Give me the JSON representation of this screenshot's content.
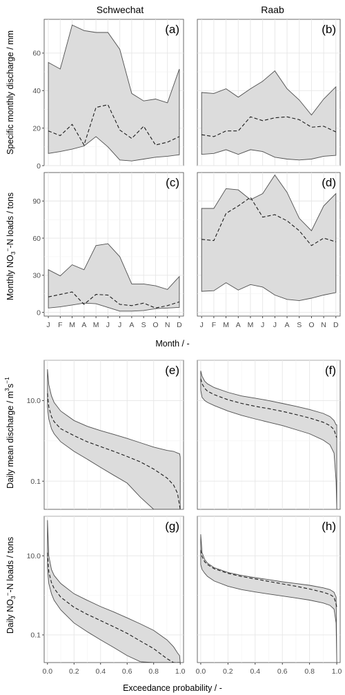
{
  "figure": {
    "column_titles": [
      "Schwechat",
      "Raab"
    ],
    "monthly_xlabel": "Month / -",
    "exceedance_xlabel": "Exceedance probability / -",
    "ylabel_discharge": "Specific monthly discharge / mm",
    "ylabel_loads_pre": "Monthly NO",
    "ylabel_loads_post": "-N loads / tons",
    "ylabel_daily_q_pre": "Daily mean discharge / m",
    "ylabel_daily_q_post": "s",
    "ylabel_daily_loads_pre": "Daily NO",
    "ylabel_daily_loads_post": "-N loads / tons",
    "sub_3": "3",
    "sup_minus": "−",
    "sup_3": "3",
    "sup_minus1": "−1",
    "month_ticks": [
      "J",
      "F",
      "M",
      "A",
      "M",
      "J",
      "J",
      "A",
      "S",
      "O",
      "N",
      "D"
    ],
    "prob_ticks": [
      "0.0",
      "0.2",
      "0.4",
      "0.6",
      "0.8",
      "1.0"
    ]
  },
  "colors": {
    "band_fill": "#dcdcdc",
    "band_edge": "#4d4d4d",
    "median": "#1a1a1a",
    "grid": "#e6e6e6",
    "frame": "#5a5a5a"
  },
  "chart_data": [
    {
      "panel": "(a)",
      "river": "Schwechat",
      "type": "area",
      "x": [
        "J",
        "F",
        "M",
        "A",
        "M",
        "J",
        "J",
        "A",
        "S",
        "O",
        "N",
        "D"
      ],
      "ylim": [
        0,
        78
      ],
      "yticks": [
        0,
        20,
        40,
        60
      ],
      "series": [
        {
          "role": "upper",
          "values": [
            55,
            51.5,
            75,
            72,
            71,
            71,
            62,
            38.5,
            34.5,
            35.5,
            33.5,
            51.5
          ]
        },
        {
          "role": "median",
          "values": [
            18.5,
            16,
            22,
            11,
            31,
            32.5,
            19,
            14.5,
            21,
            11,
            12.5,
            15.5
          ]
        },
        {
          "role": "lower",
          "values": [
            6.5,
            7.5,
            8.8,
            10.5,
            15.5,
            10,
            3,
            2.5,
            3.5,
            4.5,
            5,
            5.8
          ]
        }
      ]
    },
    {
      "panel": "(b)",
      "river": "Raab",
      "type": "area",
      "x": [
        "J",
        "F",
        "M",
        "A",
        "M",
        "J",
        "J",
        "A",
        "S",
        "O",
        "N",
        "D"
      ],
      "ylim": [
        0,
        78
      ],
      "yticks": [
        0,
        20,
        40,
        60
      ],
      "series": [
        {
          "role": "upper",
          "values": [
            39,
            38.5,
            41,
            36.5,
            41,
            45,
            50.5,
            41,
            35,
            27,
            35.5,
            42
          ]
        },
        {
          "role": "median",
          "values": [
            16.5,
            15.5,
            18.5,
            18.5,
            26,
            24,
            25.5,
            26,
            24.5,
            20.5,
            21,
            18
          ]
        },
        {
          "role": "lower",
          "values": [
            6,
            6.5,
            8.5,
            6,
            8.5,
            7.5,
            4.5,
            3.5,
            3,
            3.5,
            5,
            5.5
          ]
        }
      ]
    },
    {
      "panel": "(c)",
      "river": "Schwechat",
      "type": "area",
      "x": [
        "J",
        "F",
        "M",
        "A",
        "M",
        "J",
        "J",
        "A",
        "S",
        "O",
        "N",
        "D"
      ],
      "ylim": [
        -3,
        113
      ],
      "yticks": [
        0,
        30,
        60,
        90
      ],
      "series": [
        {
          "role": "upper",
          "values": [
            34.5,
            29.5,
            38.5,
            34.5,
            54,
            55.5,
            45,
            23,
            23,
            21.5,
            18.5,
            29
          ]
        },
        {
          "role": "median",
          "values": [
            12.5,
            14.5,
            16.5,
            6.5,
            14.5,
            14,
            6.5,
            5.5,
            7.5,
            3.5,
            5.5,
            8.5
          ]
        },
        {
          "role": "lower",
          "values": [
            3.5,
            4.5,
            6,
            7.5,
            7,
            4,
            1,
            1,
            1.5,
            3,
            3.5,
            4
          ]
        }
      ]
    },
    {
      "panel": "(d)",
      "river": "Raab",
      "type": "area",
      "x": [
        "J",
        "F",
        "M",
        "A",
        "M",
        "J",
        "J",
        "A",
        "S",
        "O",
        "N",
        "D"
      ],
      "ylim": [
        -3,
        113
      ],
      "yticks": [
        0,
        30,
        60,
        90
      ],
      "series": [
        {
          "role": "upper",
          "values": [
            84,
            84,
            100,
            99,
            91,
            96,
            111,
            97,
            76,
            66,
            86,
            96
          ]
        },
        {
          "role": "median",
          "values": [
            59,
            58,
            80,
            86,
            93,
            77,
            79,
            74,
            66,
            54,
            60,
            57
          ]
        },
        {
          "role": "lower",
          "values": [
            17,
            17.5,
            24,
            18,
            22.5,
            20.5,
            14,
            10.5,
            9.5,
            11.5,
            14,
            16
          ]
        }
      ]
    },
    {
      "panel": "(e)",
      "river": "Schwechat",
      "type": "area",
      "yscale": "log",
      "xlim": [
        -0.025,
        1.025
      ],
      "ylim": [
        0.02,
        100
      ],
      "xticks": [
        0,
        0.2,
        0.4,
        0.6,
        0.8,
        1.0
      ],
      "yticks": [
        0.1,
        10
      ],
      "x": [
        0,
        0.01,
        0.03,
        0.05,
        0.1,
        0.2,
        0.3,
        0.4,
        0.5,
        0.6,
        0.7,
        0.8,
        0.9,
        0.95,
        0.98,
        0.995,
        1.0
      ],
      "series": [
        {
          "role": "upper",
          "values": [
            60,
            25,
            13,
            9,
            5.5,
            3.2,
            2.3,
            1.8,
            1.45,
            1.15,
            0.9,
            0.7,
            0.58,
            0.55,
            0.5,
            0.48,
            0.4
          ]
        },
        {
          "role": "median",
          "values": [
            15,
            7,
            4,
            3,
            2,
            1.35,
            0.95,
            0.72,
            0.55,
            0.41,
            0.3,
            0.2,
            0.12,
            0.08,
            0.05,
            0.025,
            0.02
          ]
        },
        {
          "role": "lower",
          "values": [
            7,
            3.5,
            2,
            1.5,
            0.95,
            0.55,
            0.35,
            0.22,
            0.14,
            0.09,
            0.04,
            0.02,
            0.02,
            0.02,
            0.02,
            0.02,
            0.02
          ]
        }
      ]
    },
    {
      "panel": "(f)",
      "river": "Raab",
      "type": "area",
      "yscale": "log",
      "xlim": [
        -0.025,
        1.025
      ],
      "ylim": [
        0.02,
        100
      ],
      "xticks": [
        0,
        0.2,
        0.4,
        0.6,
        0.8,
        1.0
      ],
      "yticks": [
        0.1,
        10
      ],
      "x": [
        0,
        0.01,
        0.03,
        0.05,
        0.1,
        0.2,
        0.3,
        0.4,
        0.5,
        0.6,
        0.7,
        0.8,
        0.9,
        0.95,
        0.98,
        0.995,
        1.0
      ],
      "series": [
        {
          "role": "upper",
          "values": [
            55,
            40,
            30,
            26,
            21,
            16,
            13,
            11.5,
            10,
            8.5,
            7.2,
            6,
            4.8,
            4,
            3.2,
            2.5,
            2.5
          ]
        },
        {
          "role": "median",
          "values": [
            35,
            26,
            20,
            17,
            14,
            10.5,
            8.5,
            7.2,
            6.3,
            5.4,
            4.5,
            3.7,
            2.9,
            2.4,
            1.9,
            1.3,
            1.2
          ]
        },
        {
          "role": "lower",
          "values": [
            18,
            12,
            10,
            9,
            7.5,
            5.5,
            4.3,
            3.5,
            2.9,
            2.4,
            1.9,
            1.5,
            1.05,
            0.8,
            0.5,
            0.1,
            0.02
          ]
        }
      ]
    },
    {
      "panel": "(g)",
      "river": "Schwechat",
      "type": "area",
      "yscale": "log",
      "xlim": [
        -0.025,
        1.025
      ],
      "ylim": [
        0.02,
        100
      ],
      "xticks": [
        0,
        0.2,
        0.4,
        0.6,
        0.8,
        1.0
      ],
      "yticks": [
        0.1,
        10
      ],
      "x": [
        0,
        0.01,
        0.03,
        0.05,
        0.1,
        0.2,
        0.3,
        0.4,
        0.5,
        0.6,
        0.7,
        0.8,
        0.9,
        0.95,
        0.98,
        0.995,
        1.0
      ],
      "series": [
        {
          "role": "upper",
          "values": [
            80,
            10,
            4.5,
            3.2,
            2,
            1.1,
            0.75,
            0.52,
            0.38,
            0.27,
            0.19,
            0.13,
            0.075,
            0.05,
            0.035,
            0.03,
            0.02
          ]
        },
        {
          "role": "median",
          "values": [
            12,
            4,
            2.1,
            1.5,
            0.9,
            0.5,
            0.33,
            0.23,
            0.16,
            0.11,
            0.07,
            0.045,
            0.025,
            0.02,
            0.02,
            0.02,
            0.02
          ]
        },
        {
          "role": "lower",
          "values": [
            5,
            2,
            1.1,
            0.75,
            0.43,
            0.2,
            0.12,
            0.075,
            0.048,
            0.03,
            0.021,
            0.02,
            0.02,
            0.02,
            0.02,
            0.02,
            0.02
          ]
        }
      ]
    },
    {
      "panel": "(h)",
      "river": "Raab",
      "type": "area",
      "yscale": "log",
      "xlim": [
        -0.025,
        1.025
      ],
      "ylim": [
        0.02,
        100
      ],
      "xticks": [
        0,
        0.2,
        0.4,
        0.6,
        0.8,
        1.0
      ],
      "yticks": [
        0.1,
        10
      ],
      "x": [
        0,
        0.01,
        0.03,
        0.05,
        0.1,
        0.2,
        0.3,
        0.4,
        0.5,
        0.6,
        0.7,
        0.8,
        0.9,
        0.95,
        0.98,
        0.995,
        1.0
      ],
      "series": [
        {
          "role": "upper",
          "values": [
            35,
            12,
            8,
            6.5,
            5,
            3.8,
            3.2,
            2.8,
            2.5,
            2.2,
            2,
            1.8,
            1.55,
            1.4,
            1.2,
            0.9,
            0.02
          ]
        },
        {
          "role": "median",
          "values": [
            14,
            9.5,
            7,
            6,
            4.7,
            3.6,
            3,
            2.6,
            2.25,
            1.95,
            1.7,
            1.45,
            1.2,
            1.05,
            0.9,
            0.6,
            0.5
          ]
        },
        {
          "role": "lower",
          "values": [
            6,
            4.5,
            3.6,
            3,
            2.3,
            1.7,
            1.4,
            1.22,
            1.08,
            0.96,
            0.86,
            0.76,
            0.64,
            0.56,
            0.45,
            0.2,
            0.02
          ]
        }
      ]
    }
  ]
}
